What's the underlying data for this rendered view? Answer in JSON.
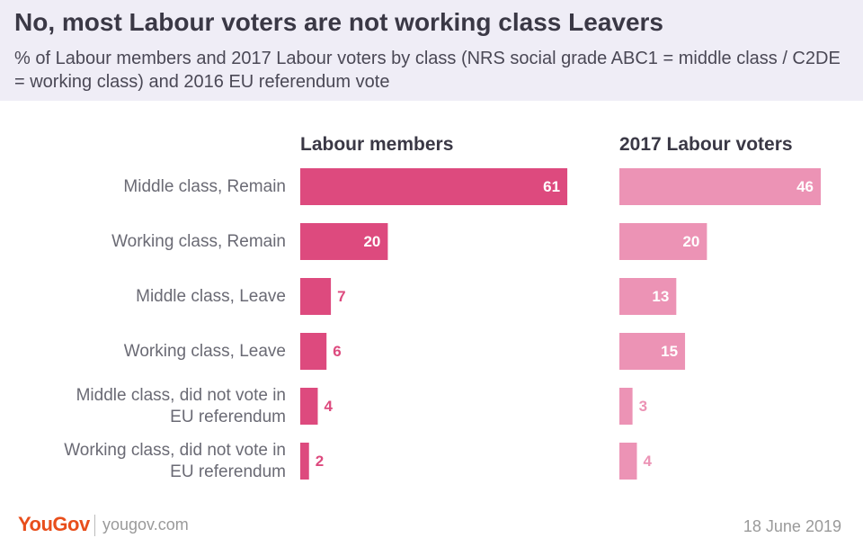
{
  "header": {
    "title": "No, most Labour voters are not working class Leavers",
    "subtitle": "% of Labour members and 2017 Labour voters by class (NRS social grade ABC1 = middle class / C2DE = working class) and 2016 EU referendum vote"
  },
  "chart_data": {
    "type": "bar",
    "orientation": "horizontal",
    "title": "No, most Labour voters are not working class Leavers",
    "subtitle": "% of Labour members and 2017 Labour voters by class (NRS social grade ABC1 = middle class / C2DE = working class) and 2016 EU referendum vote",
    "categories": [
      [
        "Middle class, Remain"
      ],
      [
        "Working class, Remain"
      ],
      [
        "Middle class, Leave"
      ],
      [
        "Working class, Leave"
      ],
      [
        "Middle class, did not vote in",
        "EU referendum"
      ],
      [
        "Working class, did not vote in",
        "EU referendum"
      ]
    ],
    "series": [
      {
        "name": "Labour members",
        "values": [
          61,
          20,
          7,
          6,
          4,
          2
        ],
        "color": "#dd4a7e"
      },
      {
        "name": "2017 Labour voters",
        "values": [
          46,
          20,
          13,
          15,
          3,
          4
        ],
        "color": "#ec93b5"
      }
    ],
    "xlim": [
      0,
      100
    ],
    "grid": false,
    "legend": "none"
  },
  "footer": {
    "brand": "YouGov",
    "url": "yougov.com",
    "date": "18 June 2019"
  },
  "colors": {
    "header_bg": "#efedf6",
    "title": "#3a3845",
    "label": "#6a6a74",
    "brand": "#e84e1b"
  }
}
